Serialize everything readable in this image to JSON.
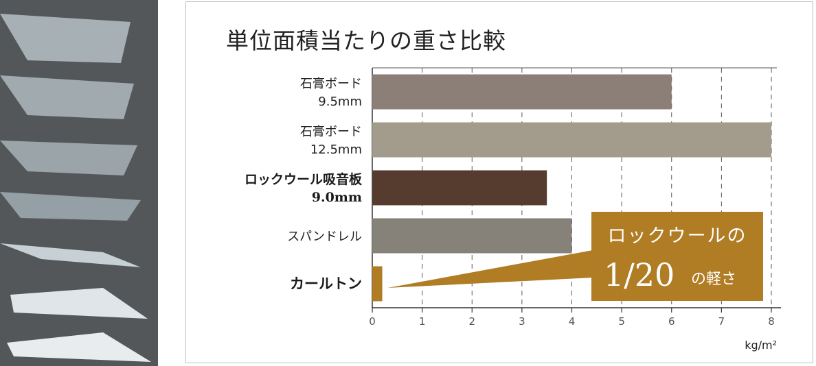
{
  "colors": {
    "accent": "#b07c24",
    "photo_bg": "#54575a",
    "slat_light": "#b5bec3",
    "slat_white": "#e8ecee"
  },
  "chart_data": {
    "type": "bar",
    "orientation": "horizontal",
    "title": "単位面積当たりの重さ比較",
    "unit": "kg/m²",
    "xlim": [
      0,
      8
    ],
    "x_ticks": [
      "0",
      "1",
      "2",
      "3",
      "4",
      "5",
      "6",
      "7",
      "8"
    ],
    "grid": "vertical dashed",
    "categories": [
      {
        "lines": [
          "石膏ボード",
          "9.5mm"
        ],
        "value": 6.0,
        "color": "#8c7f77",
        "style": "normal"
      },
      {
        "lines": [
          "石膏ボード",
          "12.5mm"
        ],
        "value": 8.0,
        "color": "#a39b8c",
        "style": "normal"
      },
      {
        "lines": [
          "ロックウール吸音板",
          "9.0mm"
        ],
        "value": 3.5,
        "color": "#553c2e",
        "style": "bold"
      },
      {
        "lines": [
          "スパンドレル"
        ],
        "value": 4.0,
        "color": "#868279",
        "style": "normal"
      },
      {
        "lines": [
          "カールトン"
        ],
        "value": 0.2,
        "color": "#b07c24",
        "style": "accent"
      }
    ],
    "annotation": {
      "line1": "ロックウールの",
      "big": "1/20",
      "small": "の軽さ"
    }
  }
}
